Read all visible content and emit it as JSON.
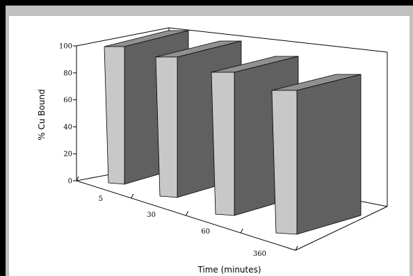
{
  "chart_data": {
    "type": "bar",
    "categories": [
      "5",
      "30",
      "60",
      "360"
    ],
    "values": [
      100,
      100,
      100,
      100
    ],
    "xlabel": "Time (minutes)",
    "ylabel": "% Cu Bound",
    "ylim": [
      0,
      100
    ],
    "yticks": [
      "0",
      "20",
      "40",
      "60",
      "80",
      "100"
    ],
    "colors": {
      "bar_front": "#c8c8c8",
      "bar_side": "#606060",
      "bar_top": "#909090"
    }
  }
}
